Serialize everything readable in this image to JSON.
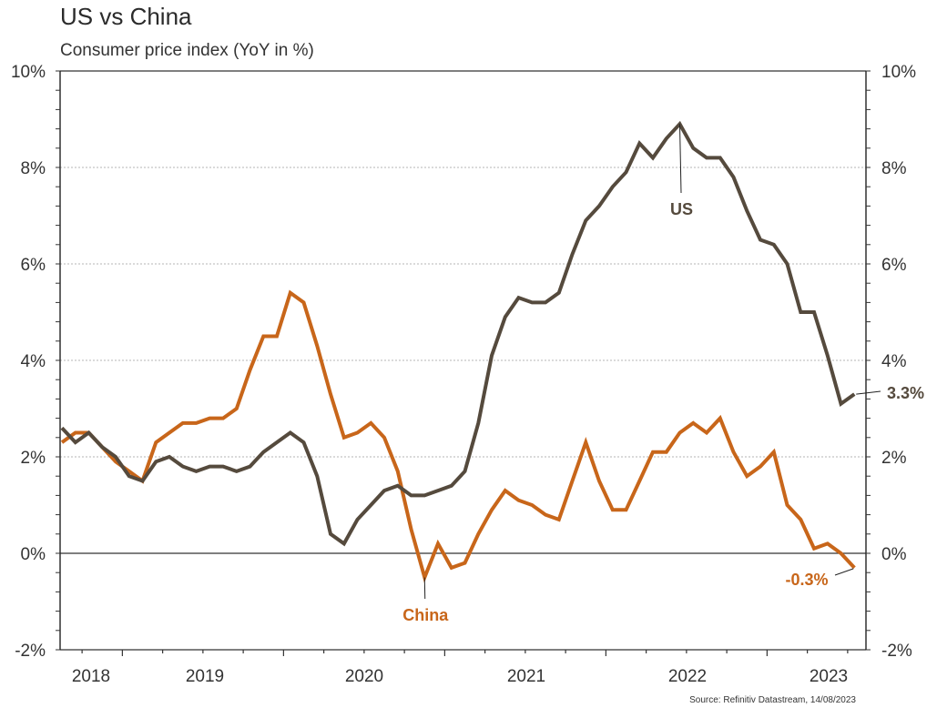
{
  "chart_data": {
    "type": "line",
    "title": "US vs China",
    "subtitle": "Consumer price index (YoY in %)",
    "xlabel": "",
    "ylabel": "",
    "ylim": [
      -2,
      10
    ],
    "yticks": [
      -2,
      0,
      2,
      4,
      6,
      8,
      10
    ],
    "ytick_labels": [
      "-2%",
      "0%",
      "2%",
      "4%",
      "6%",
      "8%",
      "10%"
    ],
    "gridlines": [
      2,
      4,
      6,
      8
    ],
    "grid": true,
    "dual_axis_labels": true,
    "x_start": "2018-08",
    "x_end": "2023-07",
    "frequency": "monthly",
    "year_labels": [
      "2018",
      "2019",
      "2020",
      "2021",
      "2022",
      "2023"
    ],
    "x": [
      "2018-08",
      "2018-09",
      "2018-10",
      "2018-11",
      "2018-12",
      "2019-01",
      "2019-02",
      "2019-03",
      "2019-04",
      "2019-05",
      "2019-06",
      "2019-07",
      "2019-08",
      "2019-09",
      "2019-10",
      "2019-11",
      "2019-12",
      "2020-01",
      "2020-02",
      "2020-03",
      "2020-04",
      "2020-05",
      "2020-06",
      "2020-07",
      "2020-08",
      "2020-09",
      "2020-10",
      "2020-11",
      "2020-12",
      "2021-01",
      "2021-02",
      "2021-03",
      "2021-04",
      "2021-05",
      "2021-06",
      "2021-07",
      "2021-08",
      "2021-09",
      "2021-10",
      "2021-11",
      "2021-12",
      "2022-01",
      "2022-02",
      "2022-03",
      "2022-04",
      "2022-05",
      "2022-06",
      "2022-07",
      "2022-08",
      "2022-09",
      "2022-10",
      "2022-11",
      "2022-12",
      "2023-01",
      "2023-02",
      "2023-03",
      "2023-04",
      "2023-05",
      "2023-06",
      "2023-07"
    ],
    "series": [
      {
        "name": "US",
        "color": "#554a3d",
        "values": [
          2.6,
          2.3,
          2.5,
          2.2,
          2.0,
          1.6,
          1.5,
          1.9,
          2.0,
          1.8,
          1.7,
          1.8,
          1.8,
          1.7,
          1.8,
          2.1,
          2.3,
          2.5,
          2.3,
          1.6,
          0.4,
          0.2,
          0.7,
          1.0,
          1.3,
          1.4,
          1.2,
          1.2,
          1.3,
          1.4,
          1.7,
          2.7,
          4.1,
          4.9,
          5.3,
          5.2,
          5.2,
          5.4,
          6.2,
          6.9,
          7.2,
          7.6,
          7.9,
          8.5,
          8.2,
          8.6,
          8.9,
          8.4,
          8.2,
          8.2,
          7.8,
          7.1,
          6.5,
          6.4,
          6.0,
          5.0,
          5.0,
          4.1,
          3.1,
          3.3
        ]
      },
      {
        "name": "China",
        "color": "#c8661a",
        "values": [
          2.3,
          2.5,
          2.5,
          2.2,
          1.9,
          1.7,
          1.5,
          2.3,
          2.5,
          2.7,
          2.7,
          2.8,
          2.8,
          3.0,
          3.8,
          4.5,
          4.5,
          5.4,
          5.2,
          4.3,
          3.3,
          2.4,
          2.5,
          2.7,
          2.4,
          1.7,
          0.5,
          -0.5,
          0.2,
          -0.3,
          -0.2,
          0.4,
          0.9,
          1.3,
          1.1,
          1.0,
          0.8,
          0.7,
          1.5,
          2.3,
          1.5,
          0.9,
          0.9,
          1.5,
          2.1,
          2.1,
          2.5,
          2.7,
          2.5,
          2.8,
          2.1,
          1.6,
          1.8,
          2.1,
          1.0,
          0.7,
          0.1,
          0.2,
          0.0,
          -0.3
        ]
      }
    ],
    "annotations": [
      {
        "text": "US",
        "series": "US",
        "point": "2022-06",
        "position": "below"
      },
      {
        "text": "China",
        "series": "China",
        "point": "2020-11",
        "position": "below"
      },
      {
        "text": "3.3%",
        "series": "US",
        "point": "2023-07",
        "position": "right"
      },
      {
        "text": "-0.3%",
        "series": "China",
        "point": "2023-07",
        "position": "below-left"
      }
    ],
    "source": "Source: Refinitiv Datastream, 14/08/2023"
  }
}
